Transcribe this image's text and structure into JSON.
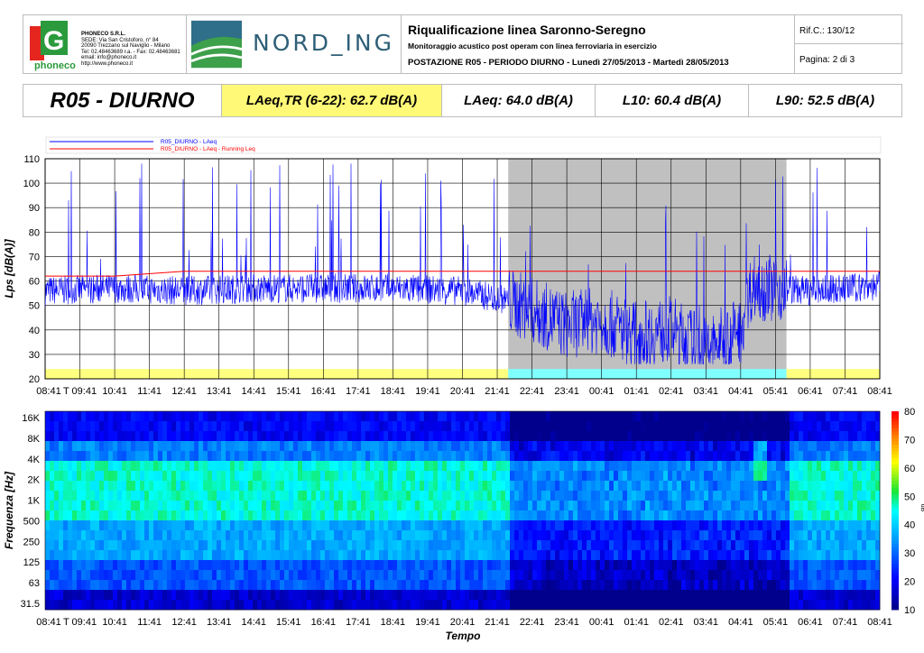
{
  "header": {
    "company": "PHONECO S.R.L.",
    "company_lines": [
      "SEDE: Via San Cristoforo, n° 84",
      "20090 Trezzano sul Naviglio - Milano",
      "Tel: 02.48463689 r.a. - Fax: 02.48463681",
      "email: info@phoneco.it",
      "http://www.phoneco.it"
    ],
    "logo_text": "phoneco",
    "partner": "NORD_ING",
    "title": "Riqualificazione linea Saronno-Seregno",
    "subtitle": "Monitoraggio acustico post operam con linea ferroviaria in esercizio",
    "station": "POSTAZIONE R05 - PERIODO DIURNO - Lunedì 27/05/2013 - Martedì 28/05/2013",
    "ref": "Rif.C.: 130/12",
    "page": "Pagina: 2 di 3"
  },
  "stats": {
    "station": "R05 - DIURNO",
    "laeq_tr": "LAeq,TR (6-22): 62.7 dB(A)",
    "laeq": "LAeq: 64.0 dB(A)",
    "l10": "L10: 60.4 dB(A)",
    "l90": "L90: 52.5 dB(A)"
  },
  "colors": {
    "laeq": "#0000ff",
    "running": "#ff0000",
    "day_band": "#ffff80",
    "night_band": "#80ffff",
    "night_shade": "#c0c0c0"
  },
  "chart_data": [
    {
      "type": "line",
      "ylabel": "Lps [dB(A)]",
      "ylim": [
        20,
        110
      ],
      "yticks": [
        20,
        30,
        40,
        50,
        60,
        70,
        80,
        90,
        100,
        110
      ],
      "x_ticks": [
        "08:41",
        "T 09:41",
        "10:41",
        "11:41",
        "12:41",
        "13:41",
        "14:41",
        "15:41",
        "16:41",
        "17:41",
        "18:41",
        "19:41",
        "20:41",
        "21:41",
        "22:41",
        "23:41",
        "00:41",
        "01:41",
        "02:41",
        "03:41",
        "04:41",
        "05:41",
        "06:41",
        "07:41",
        "08:41"
      ],
      "night_period": [
        "22:00",
        "06:00"
      ],
      "legend": [
        "R05_DIURNO - LAeq",
        "R05_DIURNO - LAeq - Running Leq"
      ],
      "series": [
        {
          "name": "R05_DIURNO - LAeq",
          "x": [
            "08:41",
            "10:41",
            "12:41",
            "14:41",
            "16:41",
            "18:41",
            "20:41",
            "22:00",
            "23:41",
            "00:41",
            "01:41",
            "02:41",
            "03:41",
            "04:41",
            "05:00",
            "06:41",
            "08:41"
          ],
          "values": [
            56,
            57,
            56,
            57,
            57,
            57,
            56,
            52,
            42,
            44,
            38,
            40,
            32,
            40,
            58,
            56,
            58
          ]
        },
        {
          "name": "R05_DIURNO - LAeq - Running Leq",
          "x": [
            "08:41",
            "10:41",
            "12:41",
            "14:41",
            "16:41",
            "18:41",
            "20:41",
            "22:41",
            "00:41",
            "02:41",
            "04:41",
            "06:41",
            "08:41"
          ],
          "values": [
            62,
            62,
            64,
            64,
            64,
            64,
            64,
            64,
            64,
            64,
            64,
            64,
            64
          ]
        }
      ]
    },
    {
      "type": "heatmap",
      "ylabel": "Frequenza [Hz]",
      "xlabel": "Tempo",
      "yticks": [
        "16K",
        "8K",
        "4K",
        "2K",
        "1K",
        "500",
        "250",
        "125",
        "63",
        "31.5"
      ],
      "x_ticks": [
        "08:41",
        "T 09:41",
        "10:41",
        "11:41",
        "12:41",
        "13:41",
        "14:41",
        "15:41",
        "16:41",
        "17:41",
        "18:41",
        "19:41",
        "20:41",
        "21:41",
        "22:41",
        "23:41",
        "00:41",
        "01:41",
        "02:41",
        "03:41",
        "04:41",
        "05:41",
        "06:41",
        "07:41",
        "08:41"
      ],
      "colorbar": {
        "min": 10,
        "max": 80,
        "ticks": [
          10,
          20,
          30,
          40,
          50,
          60,
          70,
          80
        ],
        "unit": "dB"
      }
    }
  ]
}
